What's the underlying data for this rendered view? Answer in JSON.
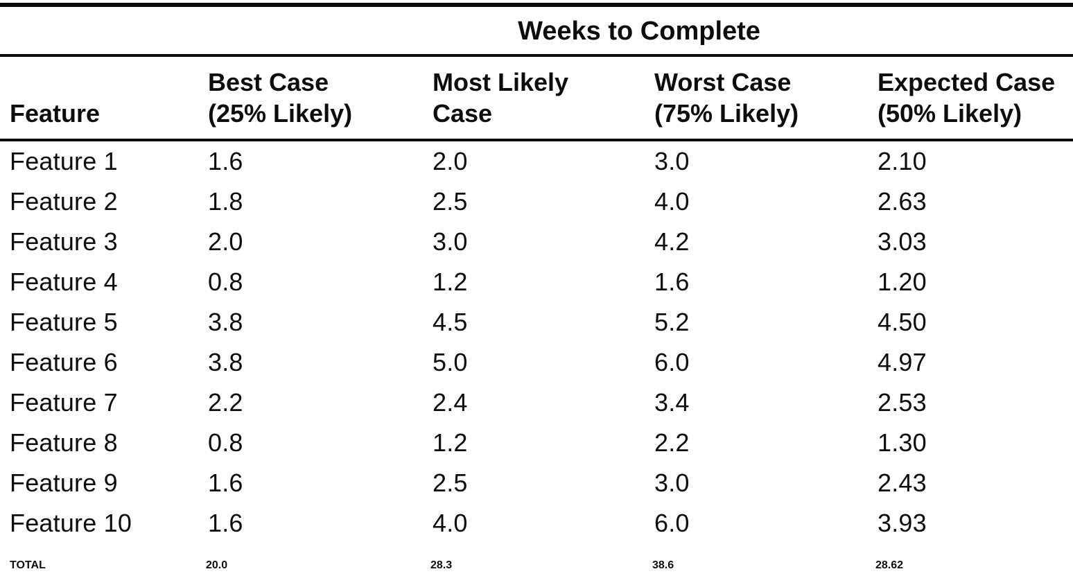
{
  "table": {
    "span_header": "Weeks to Complete",
    "columns": {
      "feature": "Feature",
      "best": "Best Case\n(25% Likely)",
      "likely": "Most Likely\nCase",
      "worst": "Worst Case\n(75% Likely)",
      "expected": "Expected Case\n(50% Likely)"
    },
    "rows": [
      {
        "feature": "Feature 1",
        "best": "1.6",
        "likely": "2.0",
        "worst": "3.0",
        "expected": "2.10"
      },
      {
        "feature": "Feature 2",
        "best": "1.8",
        "likely": "2.5",
        "worst": "4.0",
        "expected": "2.63"
      },
      {
        "feature": "Feature 3",
        "best": "2.0",
        "likely": "3.0",
        "worst": "4.2",
        "expected": "3.03"
      },
      {
        "feature": "Feature 4",
        "best": "0.8",
        "likely": "1.2",
        "worst": "1.6",
        "expected": "1.20"
      },
      {
        "feature": "Feature 5",
        "best": "3.8",
        "likely": "4.5",
        "worst": "5.2",
        "expected": "4.50"
      },
      {
        "feature": "Feature 6",
        "best": "3.8",
        "likely": "5.0",
        "worst": "6.0",
        "expected": "4.97"
      },
      {
        "feature": "Feature 7",
        "best": "2.2",
        "likely": "2.4",
        "worst": "3.4",
        "expected": "2.53"
      },
      {
        "feature": "Feature 8",
        "best": "0.8",
        "likely": "1.2",
        "worst": "2.2",
        "expected": "1.30"
      },
      {
        "feature": "Feature 9",
        "best": "1.6",
        "likely": "2.5",
        "worst": "3.0",
        "expected": "2.43"
      },
      {
        "feature": "Feature 10",
        "best": "1.6",
        "likely": "4.0",
        "worst": "6.0",
        "expected": "3.93"
      }
    ],
    "total": {
      "feature": "TOTAL",
      "best": "20.0",
      "likely": "28.3",
      "worst": "38.6",
      "expected": "28.62"
    }
  },
  "chart_data": {
    "type": "table",
    "title": "Weeks to Complete",
    "columns": [
      "Feature",
      "Best Case (25% Likely)",
      "Most Likely Case",
      "Worst Case (75% Likely)",
      "Expected Case (50% Likely)"
    ],
    "rows": [
      [
        "Feature 1",
        1.6,
        2.0,
        3.0,
        2.1
      ],
      [
        "Feature 2",
        1.8,
        2.5,
        4.0,
        2.63
      ],
      [
        "Feature 3",
        2.0,
        3.0,
        4.2,
        3.03
      ],
      [
        "Feature 4",
        0.8,
        1.2,
        1.6,
        1.2
      ],
      [
        "Feature 5",
        3.8,
        4.5,
        5.2,
        4.5
      ],
      [
        "Feature 6",
        3.8,
        5.0,
        6.0,
        4.97
      ],
      [
        "Feature 7",
        2.2,
        2.4,
        3.4,
        2.53
      ],
      [
        "Feature 8",
        0.8,
        1.2,
        2.2,
        1.3
      ],
      [
        "Feature 9",
        1.6,
        2.5,
        3.0,
        2.43
      ],
      [
        "Feature 10",
        1.6,
        4.0,
        6.0,
        3.93
      ],
      [
        "TOTAL",
        20.0,
        28.3,
        38.6,
        28.62
      ]
    ]
  },
  "colors": {
    "ink": "#0d0d0d",
    "paper": "#ffffff"
  }
}
